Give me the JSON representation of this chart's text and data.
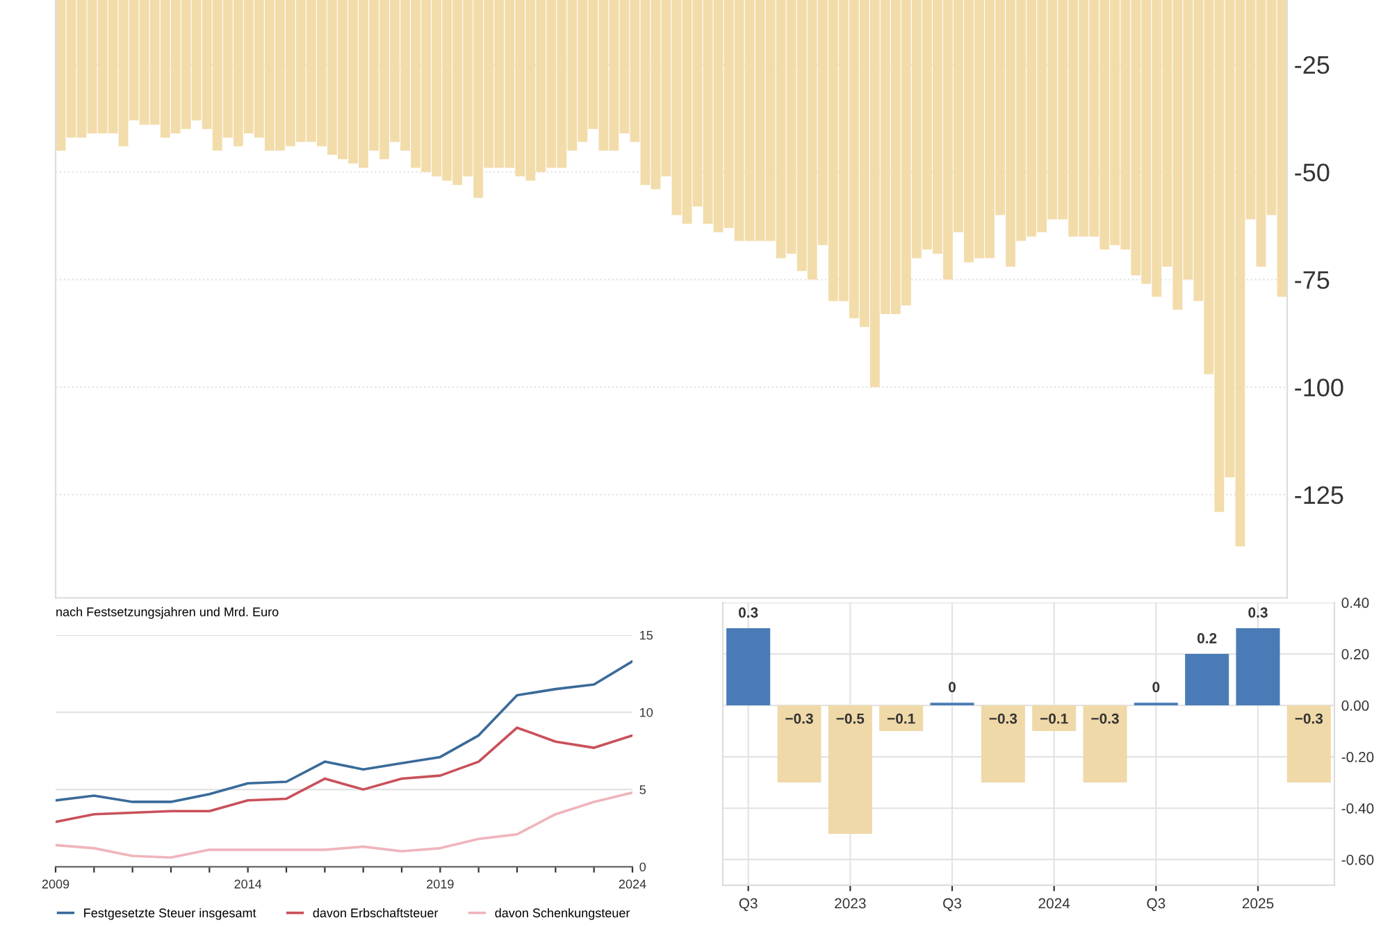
{
  "chart_data": [
    {
      "type": "bar",
      "categories": [
        null,
        null,
        null,
        null,
        null,
        null,
        null,
        null,
        null,
        null,
        null,
        null,
        null,
        null,
        null,
        null,
        null,
        null,
        null,
        null,
        null,
        null,
        null,
        null,
        null,
        null,
        null,
        null,
        null,
        null,
        null,
        null,
        null,
        null,
        null,
        null,
        null,
        null,
        null,
        null,
        null,
        null,
        null,
        null,
        null,
        null,
        null,
        null,
        null,
        null,
        null,
        null,
        null,
        null,
        null,
        null,
        null,
        null,
        null,
        null,
        null,
        null,
        null,
        null,
        null,
        null,
        null,
        null,
        null,
        null,
        null,
        null,
        null,
        null,
        null,
        null,
        null,
        null,
        null,
        null,
        null,
        null,
        null,
        null,
        null,
        null,
        null,
        null,
        null,
        null,
        null,
        null,
        null,
        null,
        null,
        null,
        null,
        null,
        null,
        null,
        null,
        null,
        null,
        null,
        null,
        null,
        null,
        null,
        null,
        null,
        null,
        null,
        null,
        null,
        null,
        null,
        null,
        null
      ],
      "values": [
        -45,
        -42,
        -42,
        -41,
        -41,
        -41,
        -44,
        -38,
        -39,
        -39,
        -42,
        -41,
        -40,
        -38,
        -40,
        -45,
        -42,
        -44,
        -41,
        -42,
        -45,
        -45,
        -44,
        -43,
        -43,
        -44,
        -46,
        -47,
        -48,
        -49,
        -45,
        -47,
        -43,
        -45,
        -49,
        -50,
        -51,
        -52,
        -53,
        -51,
        -56,
        -49,
        -49,
        -49,
        -51,
        -52,
        -50,
        -49,
        -49,
        -45,
        -43,
        -40,
        -45,
        -45,
        -41,
        -43,
        -53,
        -54,
        -51,
        -60,
        -62,
        -58,
        -62,
        -64,
        -63,
        -66,
        -66,
        -66,
        -66,
        -70,
        -69,
        -73,
        -75,
        -67,
        -80,
        -80,
        -84,
        -86,
        -100,
        -83,
        -83,
        -81,
        -70,
        -68,
        -69,
        -75,
        -64,
        -71,
        -70,
        -70,
        -60,
        -72,
        -66,
        -65,
        -64,
        -61,
        -61,
        -65,
        -65,
        -65,
        -68,
        -67,
        -68,
        -74,
        -76,
        -79,
        -72,
        -82,
        -75,
        -80,
        -97,
        -129,
        -121,
        -137,
        -61,
        -72,
        -60,
        -79
      ],
      "color": "#f2dcaa",
      "ylim": [
        -149,
        -10
      ],
      "yticks": [
        -125,
        -100,
        -75,
        -50,
        -25
      ],
      "grid": "y"
    },
    {
      "type": "line",
      "subtitle": "nach Festsetzungsjahren und Mrd. Euro",
      "x": [
        2009,
        2010,
        2011,
        2012,
        2013,
        2014,
        2015,
        2016,
        2017,
        2018,
        2019,
        2020,
        2021,
        2022,
        2023,
        2024
      ],
      "series": [
        {
          "name": "Festgesetzte Steuer insgesamt",
          "color": "#3a6a9a",
          "values": [
            4.3,
            4.6,
            4.2,
            4.2,
            4.7,
            5.4,
            5.5,
            6.8,
            6.3,
            6.7,
            7.1,
            8.5,
            11.1,
            11.5,
            11.8,
            13.3
          ]
        },
        {
          "name": "davon Erbschaftsteuer",
          "color": "#c9505a",
          "values": [
            2.9,
            3.4,
            3.5,
            3.6,
            3.6,
            4.3,
            4.4,
            5.7,
            5.0,
            5.7,
            5.9,
            6.8,
            9.0,
            8.1,
            7.7,
            8.5
          ]
        },
        {
          "name": "davon Schenkungsteuer",
          "color": "#f0b4bc",
          "values": [
            1.4,
            1.2,
            0.7,
            0.6,
            1.1,
            1.1,
            1.1,
            1.1,
            1.3,
            1.0,
            1.2,
            1.8,
            2.1,
            3.4,
            4.2,
            4.8
          ]
        }
      ],
      "xlim": [
        2009,
        2024
      ],
      "xticks": [
        2009,
        {
          "value": 2010,
          "label": null
        },
        {
          "value": 2011,
          "label": null
        },
        {
          "value": 2012,
          "label": null
        },
        {
          "value": 2013,
          "label": null
        },
        2014,
        {
          "value": 2015,
          "label": null
        },
        {
          "value": 2016,
          "label": null
        },
        {
          "value": 2017,
          "label": null
        },
        {
          "value": 2018,
          "label": null
        },
        2019,
        {
          "value": 2020,
          "label": null
        },
        {
          "value": 2021,
          "label": null
        },
        {
          "value": 2022,
          "label": null
        },
        {
          "value": 2023,
          "label": null
        },
        2024
      ],
      "ylim": [
        0,
        15
      ],
      "yticks": [
        0,
        5,
        10,
        15
      ],
      "grid": "y",
      "legend": "bottom",
      "marker": "none",
      "line_style": "solid"
    },
    {
      "type": "bar",
      "categories": [
        "Q3",
        null,
        "2023",
        null,
        "Q3",
        null,
        "2024",
        null,
        "Q3",
        null,
        "2025",
        null
      ],
      "values": [
        0.3,
        -0.3,
        -0.5,
        -0.1,
        0.01,
        -0.3,
        -0.1,
        -0.3,
        0.01,
        0.2,
        0.3,
        -0.3
      ],
      "colors": [
        "#4a7bb7",
        "#f0d9a8",
        "#f0d9a8",
        "#f0d9a8",
        "#4a7bb7",
        "#f0d9a8",
        "#f0d9a8",
        "#f0d9a8",
        "#4a7bb7",
        "#4a7bb7",
        "#4a7bb7",
        "#f0d9a8"
      ],
      "value_labels": [
        "0.3",
        "−0.3",
        "−0.5",
        "−0.1",
        "0",
        "−0.3",
        "−0.1",
        "−0.3",
        "0",
        "0.2",
        "0.3",
        "−0.3"
      ],
      "ylim": [
        -0.7,
        0.4
      ],
      "yticks": [
        {
          "value": -0.6,
          "label": "-0.60"
        },
        {
          "value": -0.4,
          "label": "-0.40"
        },
        {
          "value": -0.2,
          "label": "-0.20"
        },
        {
          "value": 0,
          "label": "0.00"
        },
        {
          "value": 0.2,
          "label": "0.20"
        },
        {
          "value": 0.4,
          "label": "0.40"
        }
      ],
      "grid": true
    }
  ]
}
